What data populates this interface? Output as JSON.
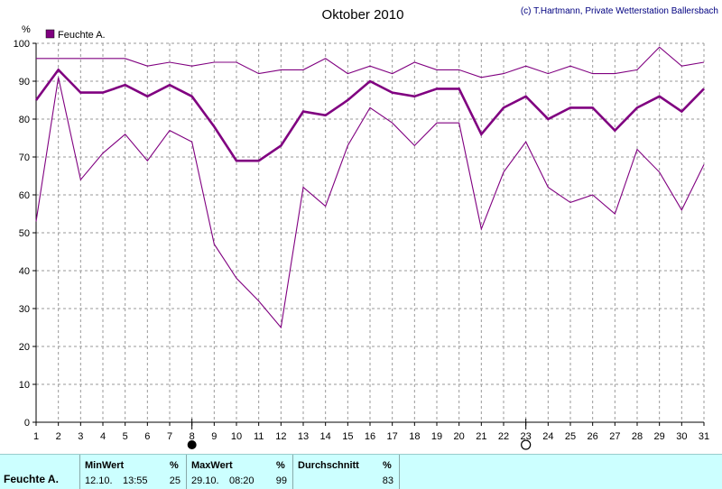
{
  "credit": "(c) T.Hartmann, Private Wetterstation Ballersbach",
  "chart_data": {
    "type": "line",
    "title": "Oktober 2010",
    "ylabel": "%",
    "legend": [
      "Feuchte A."
    ],
    "legend_position": "top-left",
    "grid": true,
    "ylim": [
      0,
      100
    ],
    "yticks": [
      0,
      10,
      20,
      30,
      40,
      50,
      60,
      70,
      80,
      90,
      100
    ],
    "x": [
      1,
      2,
      3,
      4,
      5,
      6,
      7,
      8,
      9,
      10,
      11,
      12,
      13,
      14,
      15,
      16,
      17,
      18,
      19,
      20,
      21,
      22,
      23,
      24,
      25,
      26,
      27,
      28,
      29,
      30,
      31
    ],
    "series": [
      {
        "name": "Feuchte A.",
        "role": "max",
        "color": "#800080",
        "values": [
          96,
          96,
          96,
          96,
          96,
          94,
          95,
          94,
          95,
          95,
          92,
          93,
          93,
          96,
          92,
          94,
          92,
          95,
          93,
          93,
          91,
          92,
          94,
          92,
          94,
          92,
          92,
          93,
          99,
          94,
          95
        ]
      },
      {
        "name": "Feuchte A.",
        "role": "avg",
        "color": "#800080",
        "values": [
          85,
          93,
          87,
          87,
          89,
          86,
          89,
          86,
          78,
          69,
          69,
          73,
          82,
          81,
          85,
          90,
          87,
          86,
          88,
          88,
          76,
          83,
          86,
          80,
          83,
          83,
          77,
          83,
          86,
          82,
          88
        ]
      },
      {
        "name": "Feuchte A.",
        "role": "min",
        "color": "#800080",
        "values": [
          53,
          91,
          64,
          71,
          76,
          69,
          77,
          74,
          47,
          38,
          32,
          25,
          62,
          57,
          73,
          83,
          79,
          73,
          79,
          79,
          51,
          66,
          74,
          62,
          58,
          60,
          55,
          72,
          66,
          56,
          68
        ]
      }
    ],
    "markers": [
      {
        "x": 8,
        "symbol": "new-moon"
      },
      {
        "x": 23,
        "symbol": "full-moon"
      }
    ]
  },
  "footer": {
    "row_label": "Feuchte A.",
    "min": {
      "header": "MinWert",
      "unit": "%",
      "date": "12.10.",
      "time": "13:55",
      "value": "25"
    },
    "max": {
      "header": "MaxWert",
      "unit": "%",
      "date": "29.10.",
      "time": "08:20",
      "value": "99"
    },
    "avg": {
      "header": "Durchschnitt",
      "unit": "%",
      "value": "83"
    }
  }
}
